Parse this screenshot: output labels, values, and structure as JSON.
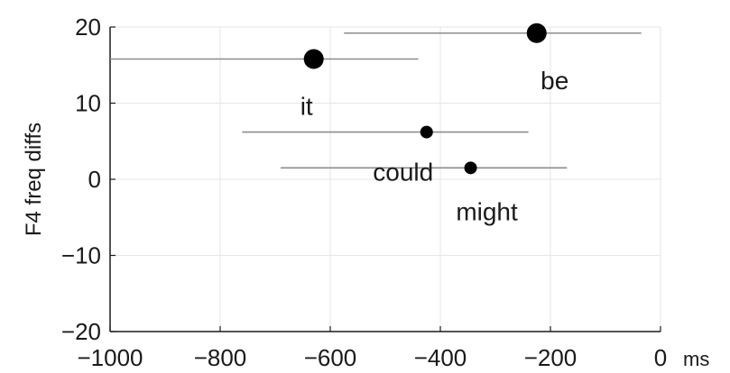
{
  "chart_data": {
    "type": "scatter",
    "title": "",
    "xlabel": "ms",
    "ylabel": "F4 freq diffs",
    "xlim": [
      -1000,
      0
    ],
    "ylim": [
      -20,
      20
    ],
    "grid": true,
    "xticks": [
      "-1000",
      "-800",
      "-600",
      "-400",
      "-200",
      "0"
    ],
    "yticks": [
      "20",
      "10",
      "0",
      "-10",
      "-20"
    ],
    "points": [
      {
        "label": "be",
        "x": -225,
        "y": 19.2,
        "xerr_low": -575,
        "xerr_high": -35,
        "marker": "large"
      },
      {
        "label": "it",
        "x": -630,
        "y": 15.8,
        "xerr_low": -1000,
        "xerr_high": -440,
        "marker": "large"
      },
      {
        "label": "could",
        "x": -425,
        "y": 6.2,
        "xerr_low": -760,
        "xerr_high": -240,
        "marker": "small"
      },
      {
        "label": "might",
        "x": -345,
        "y": 1.5,
        "xerr_low": -690,
        "xerr_high": -170,
        "marker": "small"
      }
    ]
  }
}
